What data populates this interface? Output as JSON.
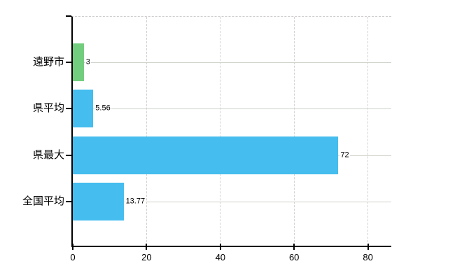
{
  "chart_data": {
    "type": "bar",
    "orientation": "horizontal",
    "title": "",
    "categories": [
      "遠野市",
      "県平均",
      "県最大",
      "全国平均"
    ],
    "values": [
      3,
      5.56,
      72,
      13.77
    ],
    "value_labels": [
      "3",
      "5.56",
      "72",
      "13.77"
    ],
    "bar_colors": [
      "#72ce7e",
      "#45bdee",
      "#45bdee",
      "#45bdee"
    ],
    "x_axis": {
      "ticks": [
        0,
        20,
        40,
        60,
        80
      ],
      "tick_labels": [
        "0",
        "20",
        "40",
        "60",
        "80"
      ],
      "range": [
        0,
        80
      ]
    },
    "grid": {
      "vertical_lines": "dashed",
      "top_border": "dashed",
      "row_lines": true
    },
    "legend": "none",
    "colors": {
      "bar_green": "#72ce7e",
      "bar_blue": "#45bdee",
      "grid_line": "#d3d0d0",
      "row_line": "#ccd2c8",
      "axis": "#000000",
      "text": "#000000",
      "background": "#ffffff"
    }
  }
}
